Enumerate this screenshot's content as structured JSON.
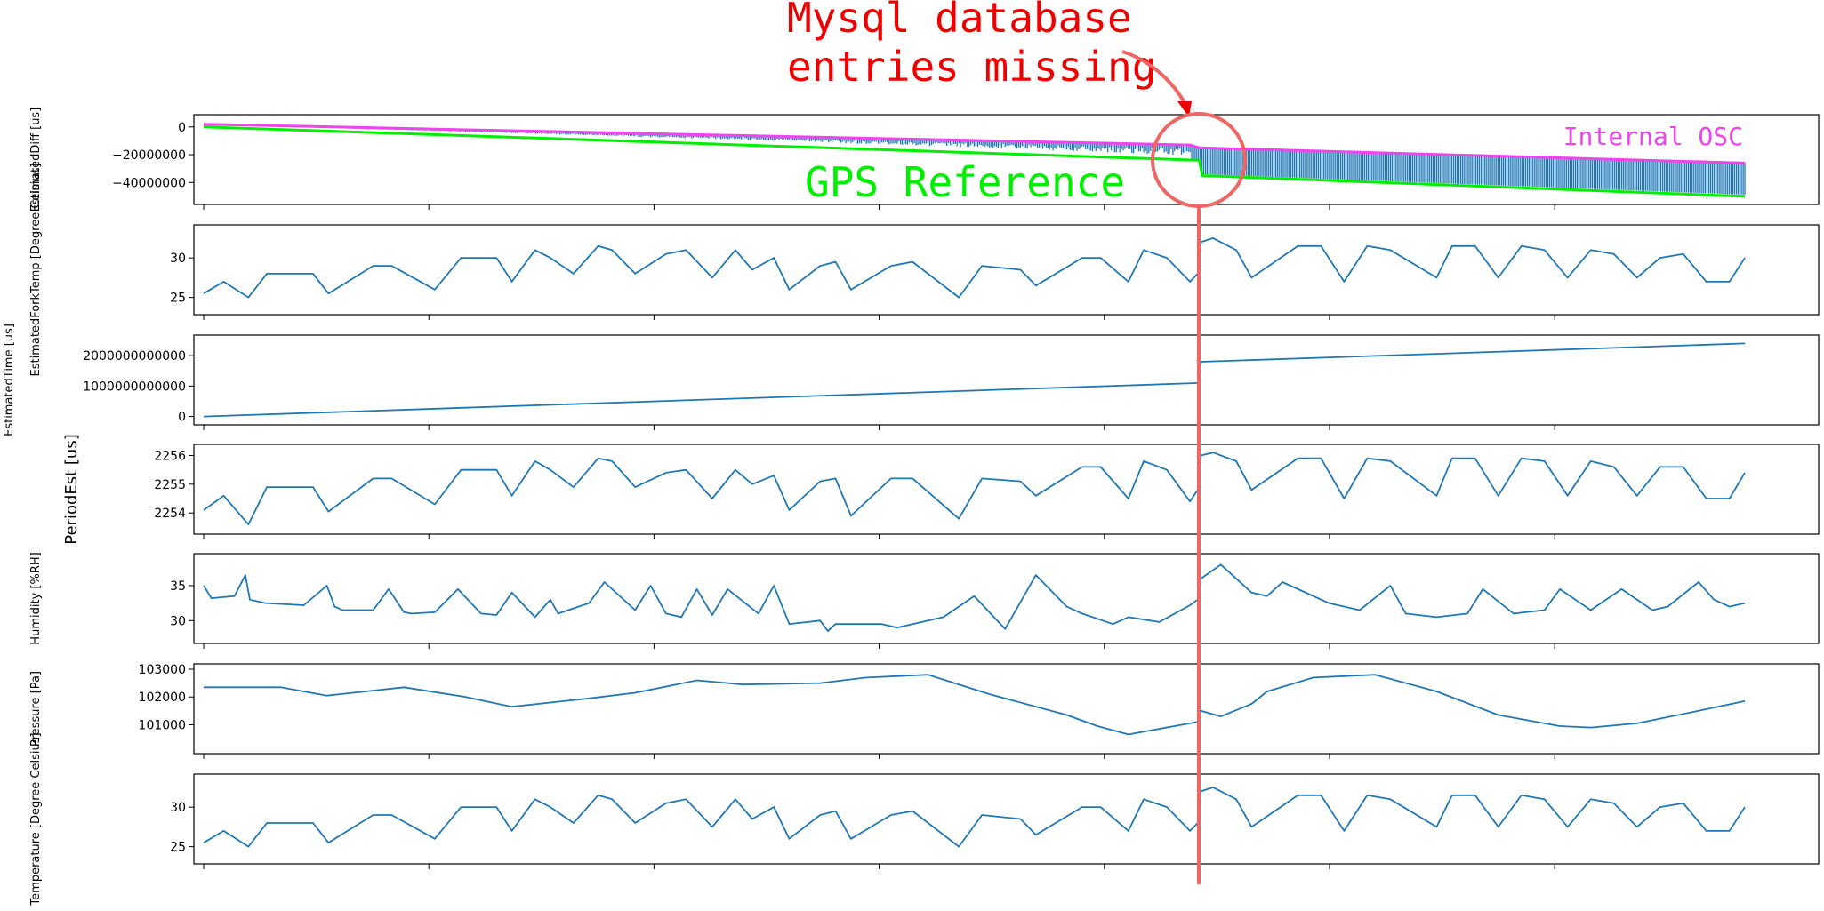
{
  "colors": {
    "series": "#1f77b4",
    "gps": "#00ee00",
    "internal": "#ee44ee",
    "annotation": "#ee0000",
    "marker": "#ee6666"
  },
  "annotations": {
    "title_line1": "Mysql database",
    "title_line2": "entries missing",
    "gps_reference": "GPS Reference",
    "internal_osc": "Internal OSC"
  },
  "chart_data": [
    {
      "type": "line",
      "ylabel": "EstimatedDiff [us]",
      "yticks": [
        0,
        -20000000,
        -40000000
      ],
      "ytick_labels": [
        "0",
        "−20000000",
        "−40000000"
      ],
      "ylim": [
        -52000000,
        5000000
      ],
      "series": [
        {
          "name": "Internal OSC",
          "x": [
            0,
            0.64,
            0.646,
            1
          ],
          "y": [
            2000000,
            -13000000,
            -15000000,
            -26000000
          ]
        },
        {
          "name": "GPS Reference",
          "x": [
            0,
            0.646,
            0.648,
            1
          ],
          "y": [
            0,
            -24000000,
            -35000000,
            -50000000
          ]
        }
      ]
    },
    {
      "type": "line",
      "ylabel": "EstimatedForkTemp [Degree Celsius]",
      "yticks": [
        25,
        30
      ],
      "ytick_labels": [
        "25",
        "30"
      ],
      "ylim": [
        23.5,
        33.5
      ],
      "series": [
        {
          "name": "",
          "x": [
            0,
            0.013,
            0.029,
            0.041,
            0.071,
            0.081,
            0.11,
            0.122,
            0.15,
            0.167,
            0.19,
            0.2,
            0.215,
            0.225,
            0.24,
            0.256,
            0.265,
            0.28,
            0.3,
            0.313,
            0.33,
            0.345,
            0.356,
            0.37,
            0.38,
            0.4,
            0.41,
            0.42,
            0.446,
            0.46,
            0.49,
            0.505,
            0.53,
            0.54,
            0.57,
            0.582,
            0.6,
            0.61,
            0.625,
            0.64,
            0.645,
            0.647,
            0.655,
            0.67,
            0.68,
            0.71,
            0.725,
            0.74,
            0.755,
            0.77,
            0.8,
            0.81,
            0.825,
            0.84,
            0.855,
            0.87,
            0.885,
            0.9,
            0.915,
            0.93,
            0.945,
            0.96,
            0.975,
            0.99,
            1
          ],
          "y": [
            25.5,
            27,
            25,
            28,
            28,
            25.5,
            29,
            29,
            26,
            30,
            30,
            27,
            31,
            30,
            28,
            31.5,
            31,
            28,
            30.5,
            31,
            27.5,
            31,
            28.5,
            30,
            26,
            29,
            29.5,
            26,
            29,
            29.5,
            25,
            29,
            28.5,
            26.5,
            30,
            30,
            27,
            31,
            30,
            27,
            28,
            32,
            32.5,
            31,
            27.5,
            31.5,
            31.5,
            27,
            31.5,
            31,
            27.5,
            31.5,
            31.5,
            27.5,
            31.5,
            31,
            27.5,
            31,
            30.5,
            27.5,
            30,
            30.5,
            27,
            27,
            30
          ]
        }
      ]
    },
    {
      "type": "line",
      "ylabel": "EstimatedTime [us]",
      "yticks": [
        0,
        1000000000000,
        2000000000000
      ],
      "ytick_labels": [
        "0",
        "1000000000000",
        "2000000000000"
      ],
      "ylim": [
        -100000000000,
        2500000000000
      ],
      "series": [
        {
          "name": "",
          "x": [
            0,
            0.646,
            0.647,
            1
          ],
          "y": [
            0,
            1100000000000,
            1800000000000,
            2400000000000
          ]
        }
      ]
    },
    {
      "type": "line",
      "ylabel": "PeriodEst [us]",
      "yticks": [
        2254,
        2255,
        2256
      ],
      "ytick_labels": [
        "2254",
        "2255",
        "2256"
      ],
      "ylim": [
        2253.45,
        2256.2
      ],
      "series": [
        {
          "name": "",
          "x": [
            0,
            0.013,
            0.029,
            0.041,
            0.071,
            0.081,
            0.11,
            0.122,
            0.15,
            0.167,
            0.19,
            0.2,
            0.215,
            0.225,
            0.24,
            0.256,
            0.265,
            0.28,
            0.3,
            0.313,
            0.33,
            0.345,
            0.356,
            0.37,
            0.38,
            0.4,
            0.41,
            0.42,
            0.446,
            0.46,
            0.49,
            0.505,
            0.53,
            0.54,
            0.57,
            0.582,
            0.6,
            0.61,
            0.625,
            0.64,
            0.645,
            0.647,
            0.655,
            0.67,
            0.68,
            0.71,
            0.725,
            0.74,
            0.755,
            0.77,
            0.8,
            0.81,
            0.825,
            0.84,
            0.855,
            0.87,
            0.885,
            0.9,
            0.915,
            0.93,
            0.945,
            0.96,
            0.975,
            0.99,
            1
          ],
          "y": [
            2254.1,
            2254.6,
            2253.6,
            2254.9,
            2254.9,
            2254.05,
            2255.2,
            2255.2,
            2254.3,
            2255.5,
            2255.5,
            2254.6,
            2255.8,
            2255.5,
            2254.9,
            2255.9,
            2255.8,
            2254.9,
            2255.4,
            2255.5,
            2254.5,
            2255.5,
            2255,
            2255.3,
            2254.1,
            2255.1,
            2255.2,
            2253.9,
            2255.2,
            2255.2,
            2253.8,
            2255.2,
            2255.1,
            2254.6,
            2255.6,
            2255.6,
            2254.5,
            2255.8,
            2255.5,
            2254.4,
            2254.8,
            2256,
            2256.1,
            2255.8,
            2254.8,
            2255.9,
            2255.9,
            2254.5,
            2255.9,
            2255.8,
            2254.6,
            2255.9,
            2255.9,
            2254.6,
            2255.9,
            2255.8,
            2254.6,
            2255.8,
            2255.6,
            2254.6,
            2255.6,
            2255.6,
            2254.5,
            2254.5,
            2255.4
          ]
        }
      ]
    },
    {
      "type": "line",
      "ylabel": "Humidity [%RH]",
      "yticks": [
        30,
        35
      ],
      "ytick_labels": [
        "30",
        "35"
      ],
      "ylim": [
        27.5,
        38.8
      ],
      "series": [
        {
          "name": "",
          "x": [
            0,
            0.005,
            0.02,
            0.027,
            0.03,
            0.04,
            0.065,
            0.08,
            0.085,
            0.09,
            0.11,
            0.12,
            0.13,
            0.135,
            0.15,
            0.165,
            0.18,
            0.19,
            0.2,
            0.215,
            0.225,
            0.23,
            0.25,
            0.26,
            0.28,
            0.29,
            0.3,
            0.31,
            0.32,
            0.33,
            0.34,
            0.36,
            0.37,
            0.38,
            0.4,
            0.405,
            0.41,
            0.44,
            0.45,
            0.48,
            0.5,
            0.52,
            0.54,
            0.56,
            0.57,
            0.59,
            0.6,
            0.62,
            0.64,
            0.645,
            0.647,
            0.66,
            0.68,
            0.69,
            0.7,
            0.73,
            0.75,
            0.77,
            0.78,
            0.8,
            0.82,
            0.83,
            0.85,
            0.87,
            0.88,
            0.9,
            0.92,
            0.94,
            0.95,
            0.97,
            0.98,
            0.99,
            1
          ],
          "y": [
            35,
            33.2,
            33.5,
            36.5,
            33,
            32.5,
            32.2,
            35,
            32,
            31.5,
            31.5,
            34.5,
            31.2,
            31,
            31.2,
            34.5,
            31,
            30.8,
            34,
            30.5,
            33,
            31,
            32.5,
            35.5,
            31.5,
            35,
            31,
            30.5,
            34.5,
            30.8,
            34.5,
            31,
            35,
            29.5,
            30,
            28.5,
            29.5,
            29.5,
            29,
            30.5,
            33.5,
            28.8,
            36.5,
            32,
            31,
            29.5,
            30.5,
            29.8,
            32.2,
            33,
            36,
            38,
            34,
            33.5,
            35.5,
            32.5,
            31.5,
            35,
            31,
            30.5,
            31,
            34.5,
            31,
            31.5,
            34.5,
            31.5,
            34.5,
            31.5,
            32,
            35.5,
            33,
            32,
            32.5
          ]
        }
      ]
    },
    {
      "type": "line",
      "ylabel": "Pressure [Pa]",
      "yticks": [
        101000,
        102000,
        103000
      ],
      "ytick_labels": [
        "101000",
        "102000",
        "103000"
      ],
      "ylim": [
        100150,
        103000
      ],
      "series": [
        {
          "name": "",
          "x": [
            0,
            0.05,
            0.08,
            0.13,
            0.17,
            0.2,
            0.25,
            0.28,
            0.32,
            0.35,
            0.4,
            0.43,
            0.47,
            0.51,
            0.56,
            0.58,
            0.6,
            0.645,
            0.647,
            0.66,
            0.68,
            0.69,
            0.72,
            0.76,
            0.8,
            0.84,
            0.88,
            0.9,
            0.93,
            0.97,
            1
          ],
          "y": [
            102350,
            102350,
            102050,
            102350,
            102000,
            101650,
            101950,
            102150,
            102600,
            102450,
            102500,
            102700,
            102800,
            102100,
            101350,
            100950,
            100650,
            101100,
            101500,
            101300,
            101750,
            102200,
            102700,
            102800,
            102200,
            101350,
            100950,
            100900,
            101050,
            101500,
            101850
          ]
        }
      ]
    },
    {
      "type": "line",
      "ylabel": "Temperature [Degree Celsius]",
      "yticks": [
        25,
        30
      ],
      "ytick_labels": [
        "25",
        "30"
      ],
      "ylim": [
        23.5,
        33.5
      ],
      "series": [
        {
          "name": "",
          "x": [
            0,
            0.013,
            0.029,
            0.041,
            0.071,
            0.081,
            0.11,
            0.122,
            0.15,
            0.167,
            0.19,
            0.2,
            0.215,
            0.225,
            0.24,
            0.256,
            0.265,
            0.28,
            0.3,
            0.313,
            0.33,
            0.345,
            0.356,
            0.37,
            0.38,
            0.4,
            0.41,
            0.42,
            0.446,
            0.46,
            0.49,
            0.505,
            0.53,
            0.54,
            0.57,
            0.582,
            0.6,
            0.61,
            0.625,
            0.64,
            0.645,
            0.647,
            0.655,
            0.67,
            0.68,
            0.71,
            0.725,
            0.74,
            0.755,
            0.77,
            0.8,
            0.81,
            0.825,
            0.84,
            0.855,
            0.87,
            0.885,
            0.9,
            0.915,
            0.93,
            0.945,
            0.96,
            0.975,
            0.99,
            1
          ],
          "y": [
            25.5,
            27,
            25,
            28,
            28,
            25.5,
            29,
            29,
            26,
            30,
            30,
            27,
            31,
            30,
            28,
            31.5,
            31,
            28,
            30.5,
            31,
            27.5,
            31,
            28.5,
            30,
            26,
            29,
            29.5,
            26,
            29,
            29.5,
            25,
            29,
            28.5,
            26.5,
            30,
            30,
            27,
            31,
            30,
            27,
            28,
            32,
            32.5,
            31,
            27.5,
            31.5,
            31.5,
            27,
            31.5,
            31,
            27.5,
            31.5,
            31.5,
            27.5,
            31.5,
            31,
            27.5,
            31,
            30.5,
            27.5,
            30,
            30.5,
            27,
            27,
            30
          ]
        }
      ]
    }
  ]
}
